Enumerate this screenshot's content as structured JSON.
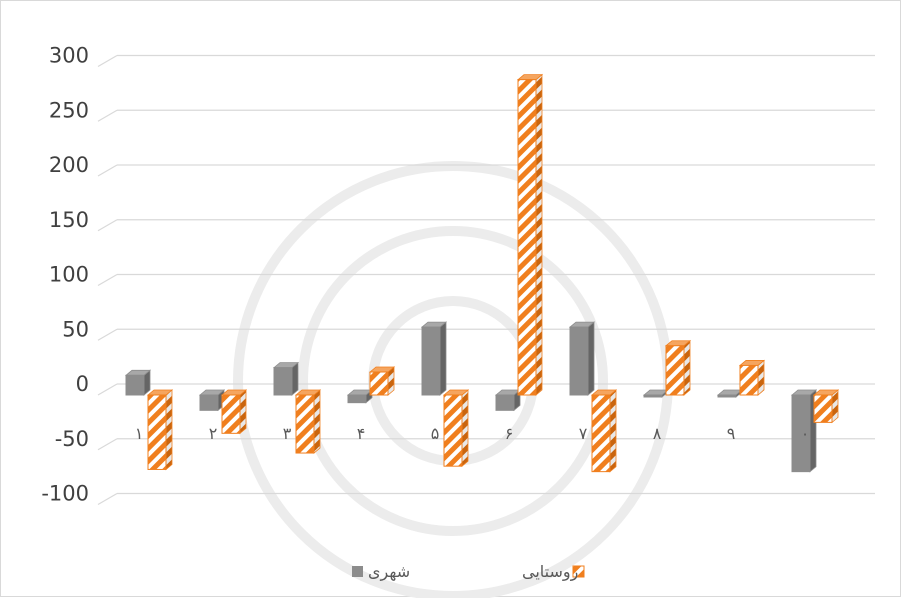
{
  "chart_data": {
    "type": "bar",
    "style": "3d clustered column",
    "categories": [
      "۱",
      "۲",
      "۳",
      "۴",
      "۵",
      "۶",
      "۷",
      "۸",
      "۹",
      "۰"
    ],
    "series": [
      {
        "name": "شهری",
        "values": [
          18,
          -14,
          25,
          -7,
          62,
          -14,
          62,
          0,
          0,
          -70
        ],
        "color": "#8c8c8c",
        "pattern": "solid"
      },
      {
        "name": "روستایی",
        "values": [
          -68,
          -35,
          -53,
          21,
          -65,
          288,
          -70,
          45,
          27,
          -25
        ],
        "color": "#f07f1e",
        "pattern": "diagonal-hatch"
      }
    ],
    "yticks": [
      300,
      250,
      200,
      150,
      100,
      50,
      0,
      -50,
      -100
    ],
    "ylim": [
      -100,
      300
    ],
    "title": "",
    "xlabel": "",
    "ylabel": "",
    "grid": true,
    "legend_position": "bottom"
  }
}
